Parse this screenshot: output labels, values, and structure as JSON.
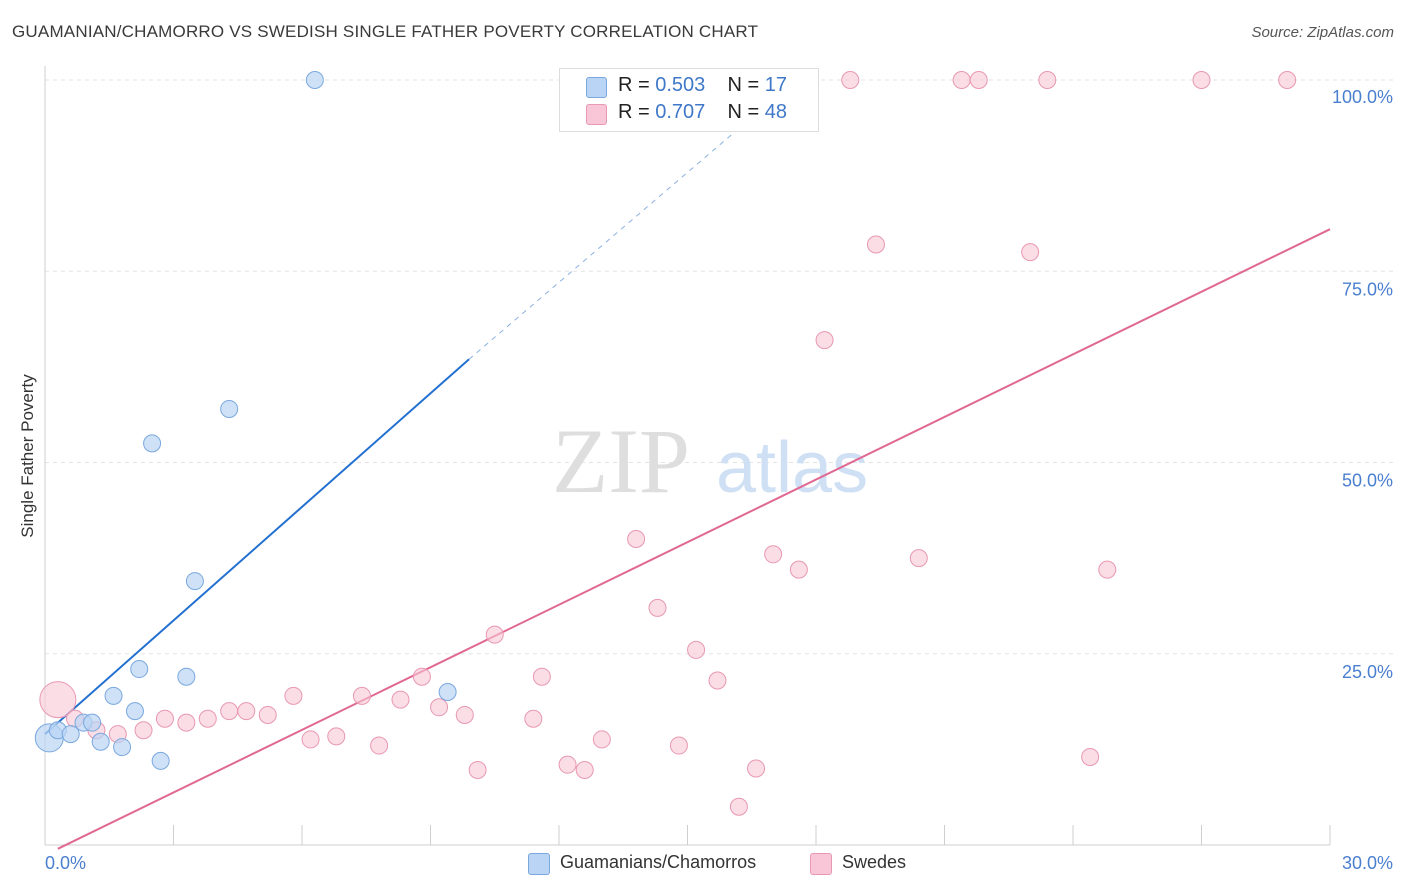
{
  "header": {
    "title": "GUAMANIAN/CHAMORRO VS SWEDISH SINGLE FATHER POVERTY CORRELATION CHART",
    "source": "Source: ZipAtlas.com"
  },
  "watermark": {
    "zip": "ZIP",
    "atlas": "atlas"
  },
  "legend": {
    "rows": [
      {
        "r_label": "R =",
        "r_value": "0.503",
        "n_label": "N =",
        "n_value": "17"
      },
      {
        "r_label": "R =",
        "r_value": "0.707",
        "n_label": "N =",
        "n_value": "48"
      }
    ]
  },
  "bottom_legend": [
    "Guamanians/Chamorros",
    "Swedes"
  ],
  "colors": {
    "guam_fill": "#b9d4f4",
    "guam_stroke": "#7aa8de",
    "guam_line": "#2370d0",
    "swede_fill": "#f8c6d6",
    "swede_stroke": "#e898b2",
    "swede_line": "#e06892",
    "tick_label": "#4a7fd0",
    "grid": "#e3e3e3"
  },
  "chart_data": {
    "type": "scatter",
    "title": "GUAMANIAN/CHAMORRO VS SWEDISH SINGLE FATHER POVERTY CORRELATION CHART",
    "xlabel": "",
    "ylabel": "Single Father Poverty",
    "xlim": [
      0,
      30
    ],
    "ylim": [
      0,
      100
    ],
    "x_tick_labels": [
      "0.0%",
      "30.0%"
    ],
    "y_tick_labels": [
      "25.0%",
      "50.0%",
      "75.0%",
      "100.0%"
    ],
    "y_ticks": [
      25,
      50,
      75,
      100
    ],
    "grid": true,
    "series": [
      {
        "name": "Guamanians/Chamorros",
        "points": [
          [
            0.1,
            14.0
          ],
          [
            0.3,
            15.0
          ],
          [
            0.6,
            14.5
          ],
          [
            0.9,
            16.0
          ],
          [
            1.1,
            16.0
          ],
          [
            1.3,
            13.5
          ],
          [
            1.6,
            19.5
          ],
          [
            1.8,
            12.8
          ],
          [
            2.1,
            17.5
          ],
          [
            2.2,
            23.0
          ],
          [
            2.5,
            52.5
          ],
          [
            2.7,
            11.0
          ],
          [
            3.3,
            22.0
          ],
          [
            3.5,
            34.5
          ],
          [
            4.3,
            57.0
          ],
          [
            6.3,
            100.0
          ],
          [
            9.4,
            20.0
          ]
        ],
        "r": "0.503",
        "n": "17",
        "trend": {
          "x": [
            0,
            9.9
          ],
          "y": [
            14.5,
            63.5
          ]
        },
        "trend_dashed": {
          "x": [
            9.9,
            17.0
          ],
          "y": [
            63.5,
            97.5
          ]
        }
      },
      {
        "name": "Swedes",
        "points": [
          [
            0.3,
            19.0
          ],
          [
            0.7,
            16.5
          ],
          [
            1.2,
            15.0
          ],
          [
            1.7,
            14.5
          ],
          [
            2.3,
            15.0
          ],
          [
            2.8,
            16.5
          ],
          [
            3.3,
            16.0
          ],
          [
            3.8,
            16.5
          ],
          [
            4.3,
            17.5
          ],
          [
            4.7,
            17.5
          ],
          [
            5.2,
            17.0
          ],
          [
            5.8,
            19.5
          ],
          [
            6.2,
            13.8
          ],
          [
            6.8,
            14.2
          ],
          [
            7.4,
            19.5
          ],
          [
            7.8,
            13.0
          ],
          [
            8.3,
            19.0
          ],
          [
            8.8,
            22.0
          ],
          [
            9.2,
            18.0
          ],
          [
            9.8,
            17.0
          ],
          [
            10.1,
            9.8
          ],
          [
            10.5,
            27.5
          ],
          [
            11.4,
            16.5
          ],
          [
            11.6,
            22.0
          ],
          [
            12.2,
            10.5
          ],
          [
            12.6,
            9.8
          ],
          [
            13.0,
            13.8
          ],
          [
            13.8,
            40.0
          ],
          [
            14.3,
            31.0
          ],
          [
            14.8,
            13.0
          ],
          [
            15.2,
            25.5
          ],
          [
            15.7,
            21.5
          ],
          [
            16.2,
            5.0
          ],
          [
            16.6,
            10.0
          ],
          [
            17.0,
            38.0
          ],
          [
            17.6,
            36.0
          ],
          [
            18.2,
            66.0
          ],
          [
            18.8,
            100.0
          ],
          [
            19.4,
            78.5
          ],
          [
            20.4,
            37.5
          ],
          [
            21.4,
            100.0
          ],
          [
            21.8,
            100.0
          ],
          [
            23.0,
            77.5
          ],
          [
            23.4,
            100.0
          ],
          [
            24.4,
            11.5
          ],
          [
            24.8,
            36.0
          ],
          [
            27.0,
            100.0
          ],
          [
            29.0,
            100.0
          ]
        ],
        "r": "0.707",
        "n": "48",
        "trend": {
          "x": [
            0.3,
            30.0
          ],
          "y": [
            -0.5,
            80.5
          ]
        }
      }
    ]
  }
}
